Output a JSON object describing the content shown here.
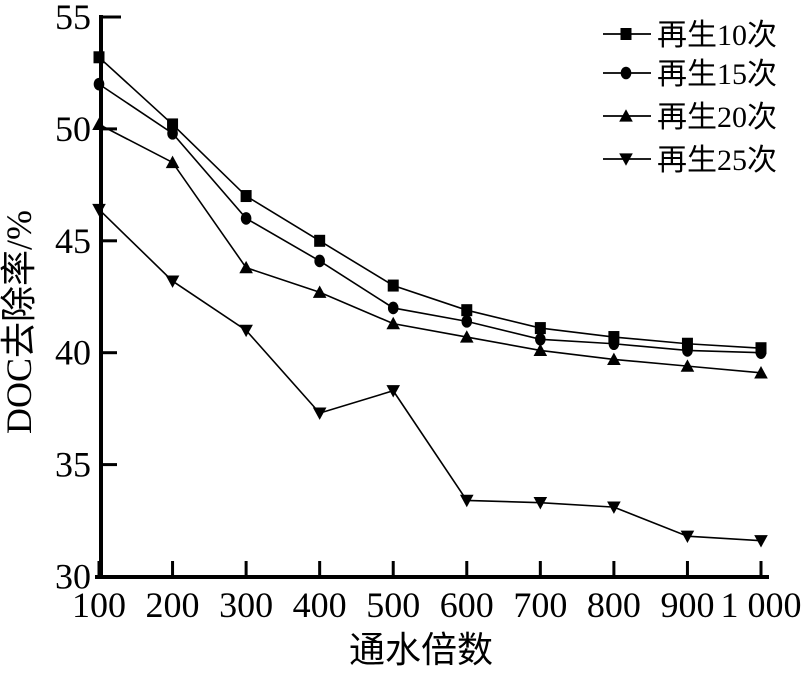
{
  "chart_data": {
    "type": "line",
    "title": "",
    "xlabel": "通水倍数",
    "ylabel": "DOC去除率/%",
    "x": [
      100,
      200,
      300,
      400,
      500,
      600,
      700,
      800,
      900,
      1000
    ],
    "x_tick_labels": [
      "100",
      "200",
      "300",
      "400",
      "500",
      "600",
      "700",
      "800",
      "900",
      "1 000"
    ],
    "y_ticks": [
      30,
      35,
      40,
      45,
      50,
      55
    ],
    "y_tick_labels": [
      "30",
      "35",
      "40",
      "45",
      "50",
      "55"
    ],
    "xlim": [
      100,
      1000
    ],
    "ylim": [
      30,
      55
    ],
    "grid": false,
    "background": "#ffffff",
    "line_color": "#000000",
    "legend_position": "top-right",
    "series": [
      {
        "name": "再生10次",
        "marker": "square-marker",
        "values": [
          53.2,
          50.2,
          47.0,
          45.0,
          43.0,
          41.9,
          41.1,
          40.7,
          40.4,
          40.2
        ]
      },
      {
        "name": "再生15次",
        "marker": "circle-marker",
        "values": [
          52.0,
          49.8,
          46.0,
          44.1,
          42.0,
          41.4,
          40.6,
          40.4,
          40.1,
          40.0
        ]
      },
      {
        "name": "再生20次",
        "marker": "triangle-up-marker",
        "values": [
          50.2,
          48.5,
          43.8,
          42.7,
          41.3,
          40.7,
          40.1,
          39.7,
          39.4,
          39.1
        ]
      },
      {
        "name": "再生25次",
        "marker": "triangle-down-marker",
        "values": [
          46.4,
          43.2,
          41.0,
          37.3,
          38.3,
          33.4,
          33.3,
          33.1,
          31.8,
          31.6
        ]
      }
    ]
  }
}
